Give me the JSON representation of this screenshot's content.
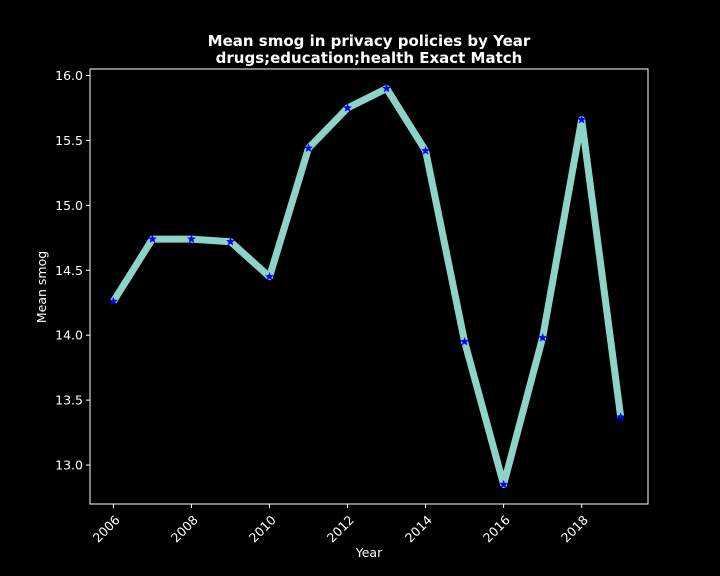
{
  "chart_data": {
    "type": "line",
    "title": "Mean smog in privacy policies by Year",
    "subtitle": "drugs;education;health Exact Match",
    "xlabel": "Year",
    "ylabel": "Mean smog",
    "x": [
      2006,
      2007,
      2008,
      2009,
      2010,
      2011,
      2012,
      2013,
      2014,
      2015,
      2016,
      2017,
      2018,
      2019
    ],
    "series": [
      {
        "values": [
          14.26,
          14.74,
          14.74,
          14.72,
          14.45,
          15.44,
          15.75,
          15.9,
          15.42,
          13.95,
          12.85,
          13.98,
          15.66,
          13.37
        ],
        "line_color": "#8dd3c7",
        "marker": "star",
        "marker_color": "#0000ff"
      }
    ],
    "xlim": [
      2005.4,
      2019.7
    ],
    "ylim": [
      12.7,
      16.05
    ],
    "xticks": [
      2006,
      2008,
      2010,
      2012,
      2014,
      2016,
      2018
    ],
    "yticks": [
      "13.0",
      "13.5",
      "14.0",
      "14.5",
      "15.0",
      "15.5",
      "16.0"
    ],
    "background": "#000000",
    "axis_color": "#ffffff",
    "grid": false
  }
}
